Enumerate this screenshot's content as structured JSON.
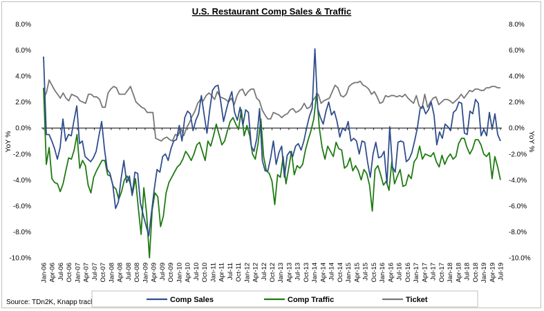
{
  "chart_data": {
    "type": "line",
    "title": "U.S. Restaurant Comp Sales & Traffic",
    "ylabel_left": "YoY %",
    "ylabel_right": "YoY %",
    "source": "Source: TDn2K, Knapp track",
    "ylim": [
      -10,
      8
    ],
    "y_ticks": [
      "8.0%",
      "6.0%",
      "4.0%",
      "2.0%",
      "0.0%",
      "-2.0%",
      "-4.0%",
      "-6.0%",
      "-8.0%",
      "-10.0%"
    ],
    "x_ticks": [
      "Jan-06",
      "Apr-06",
      "Jul-06",
      "Oct-06",
      "Jan-07",
      "Apr-07",
      "Jul-07",
      "Oct-07",
      "Jan-08",
      "Apr-08",
      "Jul-08",
      "Oct-08",
      "Jan-09",
      "Apr-09",
      "Jul-09",
      "Oct-09",
      "Jan-10",
      "Apr-10",
      "Jul-10",
      "Oct-10",
      "Jan-11",
      "Apr-11",
      "Jul-11",
      "Oct-11",
      "Jan-12",
      "Apr-12",
      "Jul-12",
      "Oct-12",
      "Jan-13",
      "Apr-13",
      "Jul-13",
      "Oct-13",
      "Jan-14",
      "Apr-14",
      "Jul-14",
      "Oct-14",
      "Jan-15",
      "Apr-15",
      "Jul-15",
      "Oct-15",
      "Jan-16",
      "Apr-16",
      "Jul-16",
      "Oct-16",
      "Jan-17",
      "Apr-17",
      "Jul-17",
      "Oct-17",
      "Jan-18",
      "Apr-18",
      "Jul-18",
      "Oct-18",
      "Jan-19",
      "Apr-19",
      "Jul-19"
    ],
    "series": [
      {
        "name": "Comp Sales",
        "color": "#2f4d8c",
        "key": "comp-sales",
        "values": [
          5.5,
          -0.5,
          -0.5,
          -1.0,
          -1.6,
          -2.4,
          -1.5,
          0.7,
          -1.0,
          -0.5,
          -0.6,
          0.6,
          1.7,
          -1.2,
          -1.0,
          -2.2,
          -2.4,
          -2.6,
          -2.3,
          -1.8,
          -0.6,
          0.5,
          -1.6,
          -3.2,
          -3.5,
          -4.4,
          -6.2,
          -5.7,
          -3.9,
          -2.5,
          -4.2,
          -3.7,
          -5.2,
          -3.4,
          -3.5,
          -5.8,
          -6.7,
          -7.5,
          -8.3,
          -6.5,
          -4.7,
          -3.2,
          -3.4,
          -2.2,
          -2.0,
          -2.5,
          -1.6,
          -1.0,
          -0.9,
          0.2,
          -1.0,
          0.8,
          1.3,
          1.1,
          -0.2,
          0.6,
          1.1,
          2.5,
          1.0,
          -0.4,
          1.4,
          2.9,
          3.2,
          3.3,
          2.0,
          0.5,
          1.4,
          2.2,
          2.8,
          1.2,
          0.6,
          1.6,
          0.2,
          1.4,
          1.2,
          -1.4,
          -1.8,
          -0.8,
          1.5,
          -2.5,
          -3.3,
          -3.3,
          -2.3,
          -1.0,
          -2.8,
          -1.9,
          -1.4,
          -3.8,
          -2.1,
          -1.8,
          -2.2,
          -1.4,
          -1.2,
          -1.7,
          -1.0,
          0.0,
          0.9,
          1.5,
          6.1,
          1.5,
          0.8,
          0.3,
          1.3,
          2.0,
          1.0,
          1.3,
          0.5,
          -0.7,
          0.0,
          -0.2,
          0.5,
          -1.0,
          -0.8,
          -1.0,
          -2.0,
          -1.0,
          -1.1,
          -2.6,
          -3.8,
          -2.0,
          -1.1,
          -2.3,
          -2.2,
          -1.8,
          -4.3,
          0.1,
          -3.0,
          -3.4,
          -1.1,
          -1.0,
          -1.1,
          -2.6,
          -2.4,
          -1.9,
          -1.0,
          0.0,
          1.5,
          1.7,
          1.1,
          1.4,
          2.0,
          1.0,
          -1.3,
          -0.3,
          -0.8,
          0.3,
          0.1,
          -0.2,
          1.2,
          1.4,
          2.0,
          1.9,
          -0.4,
          -0.5,
          1.3,
          1.1,
          2.2,
          1.9,
          -0.6,
          -0.1,
          -0.6,
          1.2,
          -0.1,
          1.1,
          -0.5,
          -1.0
        ]
      },
      {
        "name": "Comp Traffic",
        "color": "#1e7a12",
        "key": "comp-traffic",
        "values": [
          3.1,
          -2.8,
          -1.5,
          -3.9,
          -4.2,
          -4.3,
          -4.9,
          -4.3,
          -3.3,
          -2.3,
          -2.4,
          -1.7,
          -0.5,
          -3.1,
          -2.5,
          -2.9,
          -4.4,
          -5.0,
          -3.8,
          -3.3,
          -2.9,
          -2.5,
          -2.5,
          -3.6,
          -3.7,
          -4.5,
          -4.7,
          -5.5,
          -4.9,
          -4.0,
          -3.7,
          -4.2,
          -5.0,
          -3.9,
          -6.1,
          -8.2,
          -4.6,
          -6.6,
          -10.0,
          -6.3,
          -5.0,
          -5.3,
          -7.6,
          -6.8,
          -5.0,
          -4.2,
          -3.8,
          -3.4,
          -3.0,
          -2.8,
          -2.4,
          -1.8,
          -2.1,
          -2.5,
          -2.0,
          -1.3,
          -1.1,
          -1.8,
          -2.5,
          -1.0,
          -1.4,
          -0.6,
          0.3,
          -0.5,
          -1.3,
          -1.0,
          -0.2,
          0.5,
          0.8,
          0.3,
          -0.1,
          1.4,
          -0.6,
          0.2,
          -0.6,
          -2.0,
          -2.4,
          -1.2,
          0.7,
          -2.2,
          -3.3,
          -3.5,
          -4.1,
          -5.9,
          -3.6,
          -3.8,
          -2.2,
          -4.3,
          -3.1,
          -1.8,
          -3.6,
          -2.9,
          -3.1,
          -2.8,
          -1.7,
          -0.9,
          -0.2,
          0.7,
          2.7,
          0.0,
          -1.5,
          -2.4,
          -1.4,
          -1.8,
          -2.2,
          -1.1,
          -1.6,
          -1.7,
          -3.1,
          -2.9,
          -2.3,
          -3.3,
          -2.9,
          -3.3,
          -4.0,
          -3.2,
          -3.5,
          -4.4,
          -6.4,
          -3.2,
          -2.9,
          -3.6,
          -4.4,
          -4.1,
          -4.8,
          -2.6,
          -4.3,
          -3.7,
          -3.2,
          -4.5,
          -4.4,
          -3.6,
          -3.9,
          -2.6,
          -2.3,
          -1.4,
          -2.4,
          -2.0,
          -2.1,
          -2.2,
          -1.9,
          -2.6,
          -3.0,
          -2.1,
          -2.8,
          -2.3,
          -2.0,
          -2.4,
          -2.2,
          -1.2,
          -0.8,
          -0.8,
          -1.5,
          -2.0,
          -1.6,
          -0.9,
          -0.9,
          -1.3,
          -2.0,
          -2.2,
          -1.9,
          -3.9,
          -2.2,
          -3.0,
          -4.0
        ]
      },
      {
        "name": "Ticket",
        "color": "#767676",
        "key": "ticket",
        "values": [
          2.3,
          2.7,
          3.7,
          3.3,
          2.9,
          2.6,
          2.3,
          2.7,
          2.3,
          2.1,
          2.6,
          2.5,
          2.4,
          2.1,
          2.0,
          1.9,
          2.6,
          2.6,
          2.4,
          2.4,
          2.2,
          1.6,
          1.6,
          2.7,
          3.0,
          3.2,
          3.1,
          2.6,
          2.6,
          2.6,
          2.9,
          3.2,
          2.6,
          2.0,
          1.8,
          1.6,
          1.5,
          1.2,
          1.2,
          1.2,
          -0.8,
          -0.9,
          -1.0,
          -0.8,
          -0.7,
          -0.9,
          -1.0,
          -0.5,
          -0.6,
          0.0,
          -0.6,
          0.0,
          0.4,
          0.9,
          1.3,
          1.9,
          2.2,
          2.1,
          2.5,
          2.7,
          2.5,
          2.2,
          2.8,
          2.4,
          2.3,
          2.2,
          2.0,
          2.3,
          1.8,
          2.5,
          2.9,
          3.0,
          2.5,
          2.8,
          3.0,
          3.0,
          2.3,
          2.1,
          1.4,
          1.0,
          0.7,
          0.7,
          1.2,
          1.1,
          1.0,
          0.8,
          1.0,
          1.1,
          1.4,
          1.5,
          1.2,
          1.3,
          1.5,
          1.9,
          1.5,
          1.6,
          2.1,
          2.4,
          2.6,
          1.9,
          2.1,
          2.2,
          2.3,
          2.8,
          3.3,
          3.1,
          2.5,
          2.4,
          2.6,
          3.2,
          3.4,
          3.5,
          3.5,
          3.6,
          3.3,
          3.2,
          3.0,
          2.6,
          2.8,
          2.4,
          1.9,
          2.0,
          2.5,
          2.4,
          2.5,
          2.5,
          2.4,
          2.5,
          2.4,
          2.6,
          2.3,
          2.1,
          1.9,
          2.5,
          1.7,
          1.5,
          2.6,
          1.6,
          2.0,
          2.3,
          2.4,
          1.8,
          2.0,
          2.2,
          2.2,
          2.1,
          1.9,
          2.1,
          2.3,
          2.6,
          2.3,
          2.6,
          2.9,
          2.8,
          3.0,
          3.0,
          2.9,
          2.9,
          3.1,
          3.1,
          3.2,
          3.2,
          3.1,
          3.1
        ]
      }
    ]
  }
}
